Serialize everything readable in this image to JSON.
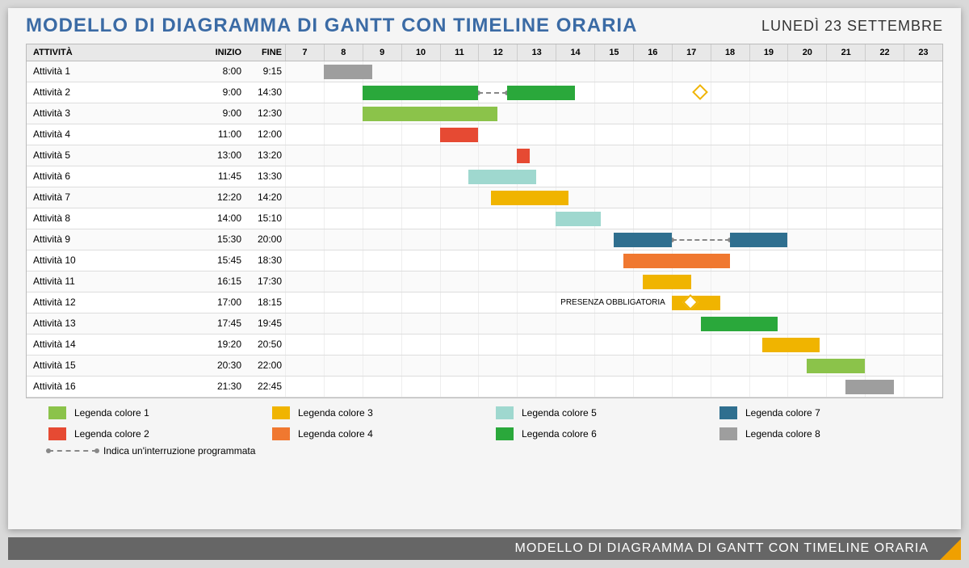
{
  "title": "MODELLO DI DIAGRAMMA DI GANTT CON TIMELINE ORARIA",
  "title_color": "#3b6ba5",
  "date": "LUNEDÌ 23 SETTEMBRE",
  "date_color": "#333333",
  "footer_text": "MODELLO DI DIAGRAMMA DI GANTT CON TIMELINE ORARIA",
  "columns": {
    "activity": "ATTIVITÀ",
    "start": "INIZIO",
    "end": "FINE"
  },
  "hours": [
    7,
    8,
    9,
    10,
    11,
    12,
    13,
    14,
    15,
    16,
    17,
    18,
    19,
    20,
    21,
    22,
    23
  ],
  "hour_start": 7,
  "hour_end": 24,
  "colors": {
    "c1": "#8bc34a",
    "c2": "#e64a33",
    "c3": "#f0b400",
    "c4": "#f07830",
    "c5": "#9fd8cf",
    "c6": "#2aa83b",
    "c7": "#2f6f8f",
    "c8": "#9e9e9e"
  },
  "rows": [
    {
      "name": "Attività 1",
      "start": "8:00",
      "end": "9:15",
      "bars": [
        {
          "from": 8.0,
          "to": 9.25,
          "color": "c8"
        }
      ]
    },
    {
      "name": "Attività 2",
      "start": "9:00",
      "end": "14:30",
      "bars": [
        {
          "from": 9.0,
          "to": 12.0,
          "color": "c6"
        },
        {
          "from": 12.75,
          "to": 14.5,
          "color": "c6"
        }
      ],
      "gaps": [
        {
          "from": 12.0,
          "to": 12.75
        }
      ],
      "diamonds": [
        {
          "at": 17.75
        }
      ]
    },
    {
      "name": "Attività 3",
      "start": "9:00",
      "end": "12:30",
      "bars": [
        {
          "from": 9.0,
          "to": 12.5,
          "color": "c1"
        }
      ]
    },
    {
      "name": "Attività 4",
      "start": "11:00",
      "end": "12:00",
      "bars": [
        {
          "from": 11.0,
          "to": 12.0,
          "color": "c2"
        }
      ]
    },
    {
      "name": "Attività 5",
      "start": "13:00",
      "end": "13:20",
      "bars": [
        {
          "from": 13.0,
          "to": 13.333,
          "color": "c2"
        }
      ]
    },
    {
      "name": "Attività 6",
      "start": "11:45",
      "end": "13:30",
      "bars": [
        {
          "from": 11.75,
          "to": 13.5,
          "color": "c5"
        }
      ]
    },
    {
      "name": "Attività 7",
      "start": "12:20",
      "end": "14:20",
      "bars": [
        {
          "from": 12.333,
          "to": 14.333,
          "color": "c3"
        }
      ]
    },
    {
      "name": "Attività 8",
      "start": "14:00",
      "end": "15:10",
      "bars": [
        {
          "from": 14.0,
          "to": 15.167,
          "color": "c5"
        }
      ]
    },
    {
      "name": "Attività 9",
      "start": "15:30",
      "end": "20:00",
      "bars": [
        {
          "from": 15.5,
          "to": 17.0,
          "color": "c7"
        },
        {
          "from": 18.5,
          "to": 20.0,
          "color": "c7"
        }
      ],
      "gaps": [
        {
          "from": 17.0,
          "to": 18.5
        }
      ]
    },
    {
      "name": "Attività 10",
      "start": "15:45",
      "end": "18:30",
      "bars": [
        {
          "from": 15.75,
          "to": 18.5,
          "color": "c4"
        }
      ]
    },
    {
      "name": "Attività 11",
      "start": "16:15",
      "end": "17:30",
      "bars": [
        {
          "from": 16.25,
          "to": 17.5,
          "color": "c3"
        }
      ]
    },
    {
      "name": "Attività 12",
      "start": "17:00",
      "end": "18:15",
      "bars": [
        {
          "from": 17.0,
          "to": 18.25,
          "color": "c3"
        }
      ],
      "diamonds": [
        {
          "at": 17.5
        }
      ],
      "annotation": {
        "text": "PRESENZA OBBLIGATORIA",
        "at": 17.0
      }
    },
    {
      "name": "Attività 13",
      "start": "17:45",
      "end": "19:45",
      "bars": [
        {
          "from": 17.75,
          "to": 19.75,
          "color": "c6"
        }
      ]
    },
    {
      "name": "Attività 14",
      "start": "19:20",
      "end": "20:50",
      "bars": [
        {
          "from": 19.333,
          "to": 20.833,
          "color": "c3"
        }
      ]
    },
    {
      "name": "Attività 15",
      "start": "20:30",
      "end": "22:00",
      "bars": [
        {
          "from": 20.5,
          "to": 22.0,
          "color": "c1"
        }
      ]
    },
    {
      "name": "Attività 16",
      "start": "21:30",
      "end": "22:45",
      "bars": [
        {
          "from": 21.5,
          "to": 22.75,
          "color": "c8"
        }
      ]
    }
  ],
  "legend": [
    {
      "color": "c1",
      "label": "Legenda colore 1"
    },
    {
      "color": "c3",
      "label": "Legenda colore 3"
    },
    {
      "color": "c5",
      "label": "Legenda colore 5"
    },
    {
      "color": "c7",
      "label": "Legenda colore 7"
    },
    {
      "color": "c2",
      "label": "Legenda colore 2"
    },
    {
      "color": "c4",
      "label": "Legenda colore 4"
    },
    {
      "color": "c6",
      "label": "Legenda colore 6"
    },
    {
      "color": "c8",
      "label": "Legenda colore 8"
    }
  ],
  "interrupt_label": "Indica un'interruzione programmata"
}
